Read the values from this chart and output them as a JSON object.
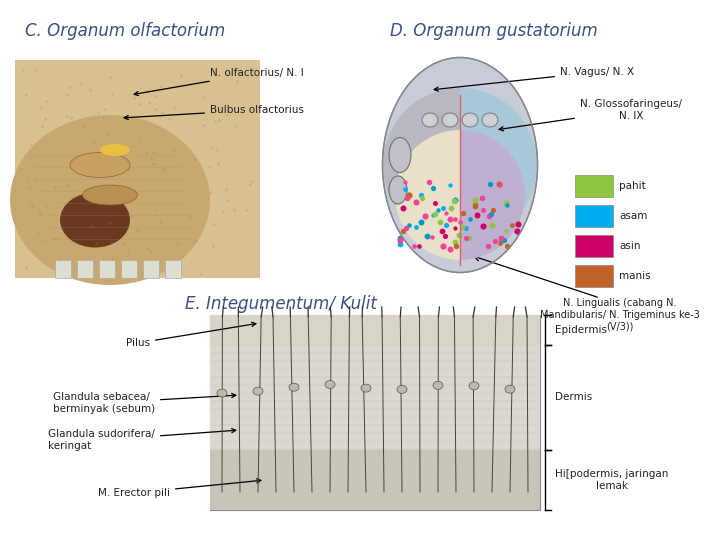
{
  "background_color": "#ffffff",
  "title_C": "C. Organum olfactorium",
  "title_D": "D. Organum gustatorium",
  "title_E": "E. Integumentum/ Kulit",
  "label_N_olfactorius": "N. olfactorius/ N. I",
  "label_bulbus": "Bulbus olfactorius",
  "label_N_vagus": "N. Vagus/ N. X",
  "label_N_glosso": "N. Glossofaringeus/\nN. IX",
  "label_N_lingualis": "N. Lingualis (cabang N.\nMandibularis/ N. Trigeminus ke-3\n(V/3))",
  "legend_items": [
    "pahit",
    "asam",
    "asin",
    "manis"
  ],
  "legend_colors": [
    "#8dc63f",
    "#00aeef",
    "#cc0066",
    "#c0622a"
  ],
  "label_pilus": "Pilus",
  "label_glandula_seb": "Glandula sebacea/\nberminyak (sebum)",
  "label_glandula_sud": "Glandula sudorifera/\nkeringat",
  "label_erector": "M. Erector pili",
  "label_epidermis": "Epidermis",
  "label_dermis": "Dermis",
  "label_hipodermis": "Hi[podermis, jaringan\nlemak",
  "title_fontsize": 12,
  "label_fontsize": 7.5,
  "title_color": "#3a5080"
}
